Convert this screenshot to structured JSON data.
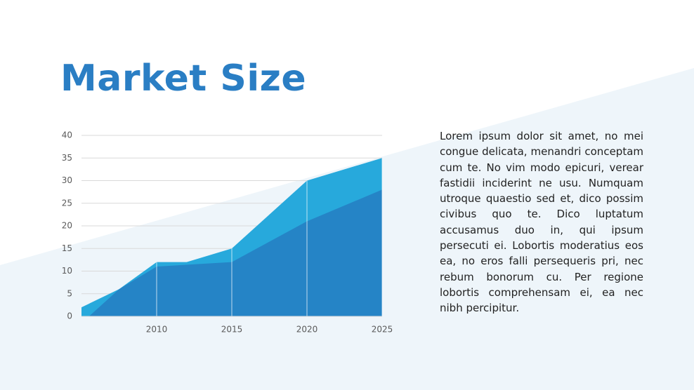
{
  "title": "Market Size",
  "body": "Lorem ipsum dolor sit amet, no mei congue delicata, menandri conceptam cum te. No vim modo epicuri, verear fastidii inciderint ne usu. Numquam utroque quaestio sed et, dico possim civibus quo te. Dico luptatum accusamus duo in, qui ipsum persecuti ei. Lobortis moderatius eos ea, no eros falli persequeris pri, nec rebum bonorum cu. Per regione lobortis comprehensam ei, ea nec nibh percipitur.",
  "chart_data": {
    "type": "area",
    "xlim": [
      2005,
      2025
    ],
    "xticks": [
      2010,
      2015,
      2020,
      2025
    ],
    "ylim": [
      0,
      40
    ],
    "yticks": [
      0,
      5,
      10,
      15,
      20,
      25,
      30,
      35,
      40
    ],
    "grid": true,
    "series": [
      {
        "color": "#27a9dc",
        "x": [
          2005,
          2007.5,
          2010,
          2012,
          2015,
          2020,
          2025
        ],
        "values": [
          2,
          6,
          12,
          12,
          15,
          30,
          35
        ]
      },
      {
        "color": "#2584c6",
        "x": [
          2005.5,
          2007.5,
          2010,
          2015,
          2020,
          2025
        ],
        "values": [
          0,
          6,
          11,
          12,
          21,
          28
        ]
      }
    ]
  }
}
